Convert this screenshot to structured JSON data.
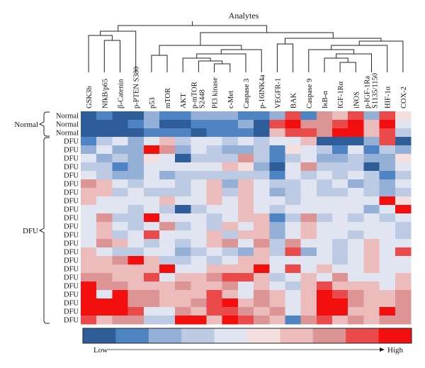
{
  "chart_data": {
    "type": "heatmap",
    "title": "Analytes",
    "columns": [
      "GSK3b",
      "NfkB/p65",
      "β-Catenin",
      "p-PTEN S380",
      "p53",
      "mTOR",
      "AKT",
      "p-mTOR S2448",
      "PI3 kinase",
      "c-Met",
      "Caspase 3",
      "p-16INK4a",
      "VEGFR-1",
      "BAK",
      "Caspase 9",
      "IκB-α",
      "IGF-1Rα",
      "iNOS",
      "p-IGF-1Ra S1135/1150",
      "HIF-1α",
      "COX-2"
    ],
    "row_labels": [
      "Normal",
      "Normal",
      "Normal",
      "DFU",
      "DFU",
      "DFU",
      "DFU",
      "DFU",
      "DFU",
      "DFU",
      "DFU",
      "DFU",
      "DFU",
      "DFU",
      "DFU",
      "DFU",
      "DFU",
      "DFU",
      "DFU",
      "DFU",
      "DFU",
      "DFU",
      "DFU",
      "DFU",
      "DFU"
    ],
    "groups": [
      {
        "name": "Normal",
        "rows": [
          0,
          2
        ]
      },
      {
        "name": "DFU",
        "rows": [
          3,
          24
        ]
      }
    ],
    "values": [
      [
        0,
        1,
        0,
        0,
        2,
        1,
        1,
        2,
        2,
        2,
        1,
        1,
        2,
        8,
        1,
        7,
        6,
        8,
        2,
        8,
        5
      ],
      [
        0,
        0,
        0,
        1,
        2,
        0,
        0,
        1,
        1,
        1,
        2,
        0,
        8,
        9,
        7,
        7,
        8,
        9,
        6,
        9,
        4
      ],
      [
        0,
        0,
        0,
        0,
        1,
        1,
        1,
        0,
        1,
        1,
        1,
        0,
        6,
        8,
        8,
        7,
        9,
        9,
        6,
        8,
        3
      ],
      [
        1,
        3,
        4,
        2,
        4,
        6,
        3,
        4,
        4,
        3,
        4,
        3,
        4,
        4,
        6,
        0,
        0,
        0,
        2,
        8,
        0
      ],
      [
        2,
        4,
        2,
        2,
        9,
        7,
        2,
        4,
        3,
        2,
        2,
        3,
        1,
        5,
        4,
        3,
        1,
        4,
        1,
        3,
        2
      ],
      [
        4,
        2,
        3,
        2,
        5,
        4,
        0,
        3,
        3,
        3,
        7,
        3,
        1,
        3,
        4,
        2,
        2,
        3,
        2,
        2,
        5
      ],
      [
        3,
        3,
        1,
        2,
        4,
        4,
        4,
        4,
        4,
        6,
        5,
        2,
        0,
        4,
        7,
        3,
        3,
        3,
        0,
        2,
        4
      ],
      [
        4,
        3,
        2,
        2,
        4,
        2,
        3,
        3,
        3,
        3,
        3,
        3,
        1,
        4,
        3,
        4,
        3,
        4,
        3,
        1,
        3
      ],
      [
        7,
        6,
        4,
        3,
        4,
        4,
        3,
        4,
        6,
        2,
        6,
        4,
        3,
        3,
        4,
        3,
        4,
        2,
        3,
        2,
        4
      ],
      [
        6,
        6,
        3,
        4,
        3,
        3,
        3,
        4,
        6,
        3,
        6,
        4,
        2,
        3,
        4,
        3,
        3,
        4,
        3,
        2,
        3
      ],
      [
        6,
        4,
        4,
        4,
        4,
        6,
        4,
        4,
        6,
        4,
        6,
        4,
        4,
        3,
        4,
        4,
        4,
        4,
        4,
        9,
        5
      ],
      [
        4,
        4,
        4,
        3,
        4,
        3,
        0,
        3,
        4,
        4,
        6,
        4,
        3,
        4,
        4,
        4,
        4,
        4,
        2,
        4,
        9
      ],
      [
        4,
        7,
        3,
        3,
        9,
        4,
        4,
        4,
        3,
        4,
        6,
        6,
        1,
        3,
        7,
        3,
        4,
        3,
        4,
        3,
        4
      ],
      [
        4,
        6,
        4,
        3,
        4,
        7,
        3,
        4,
        3,
        6,
        4,
        6,
        2,
        4,
        6,
        4,
        4,
        4,
        4,
        4,
        3
      ],
      [
        4,
        6,
        3,
        4,
        8,
        4,
        4,
        4,
        6,
        3,
        6,
        6,
        2,
        4,
        6,
        4,
        4,
        3,
        4,
        4,
        3
      ],
      [
        4,
        7,
        6,
        4,
        3,
        4,
        3,
        4,
        6,
        7,
        4,
        7,
        3,
        7,
        4,
        4,
        3,
        4,
        6,
        4,
        4
      ],
      [
        6,
        4,
        3,
        3,
        4,
        4,
        2,
        3,
        4,
        3,
        2,
        6,
        3,
        8,
        2,
        4,
        3,
        4,
        6,
        4,
        8
      ],
      [
        6,
        6,
        7,
        9,
        6,
        3,
        3,
        4,
        3,
        4,
        6,
        6,
        4,
        4,
        4,
        4,
        3,
        4,
        6,
        4,
        4
      ],
      [
        6,
        6,
        6,
        6,
        6,
        9,
        4,
        4,
        6,
        6,
        6,
        9,
        4,
        8,
        4,
        6,
        4,
        4,
        6,
        4,
        4
      ],
      [
        7,
        7,
        6,
        6,
        8,
        4,
        6,
        6,
        7,
        8,
        8,
        6,
        3,
        4,
        6,
        4,
        7,
        4,
        4,
        4,
        6
      ],
      [
        9,
        7,
        7,
        6,
        6,
        6,
        7,
        6,
        6,
        7,
        4,
        6,
        4,
        3,
        6,
        8,
        6,
        6,
        6,
        4,
        6
      ],
      [
        9,
        4,
        9,
        7,
        7,
        6,
        6,
        6,
        8,
        6,
        4,
        7,
        6,
        4,
        6,
        9,
        8,
        7,
        6,
        6,
        7
      ],
      [
        9,
        9,
        9,
        7,
        7,
        6,
        6,
        7,
        8,
        9,
        6,
        7,
        6,
        4,
        6,
        9,
        9,
        7,
        6,
        6,
        7
      ],
      [
        9,
        9,
        9,
        8,
        4,
        4,
        7,
        6,
        8,
        8,
        7,
        6,
        7,
        4,
        6,
        9,
        9,
        6,
        6,
        9,
        7
      ],
      [
        8,
        6,
        7,
        7,
        3,
        3,
        9,
        9,
        6,
        9,
        8,
        7,
        6,
        1,
        7,
        8,
        6,
        7,
        6,
        7,
        7
      ]
    ],
    "scale_colors": [
      "#2e5d9a",
      "#4f84c4",
      "#94b0d7",
      "#bccbe3",
      "#e0e5f1",
      "#f5dede",
      "#ecbcbc",
      "#dd9494",
      "#ea4a4a",
      "#f40f0f"
    ],
    "legend": {
      "low_label": "Low",
      "high_label": "High"
    }
  }
}
